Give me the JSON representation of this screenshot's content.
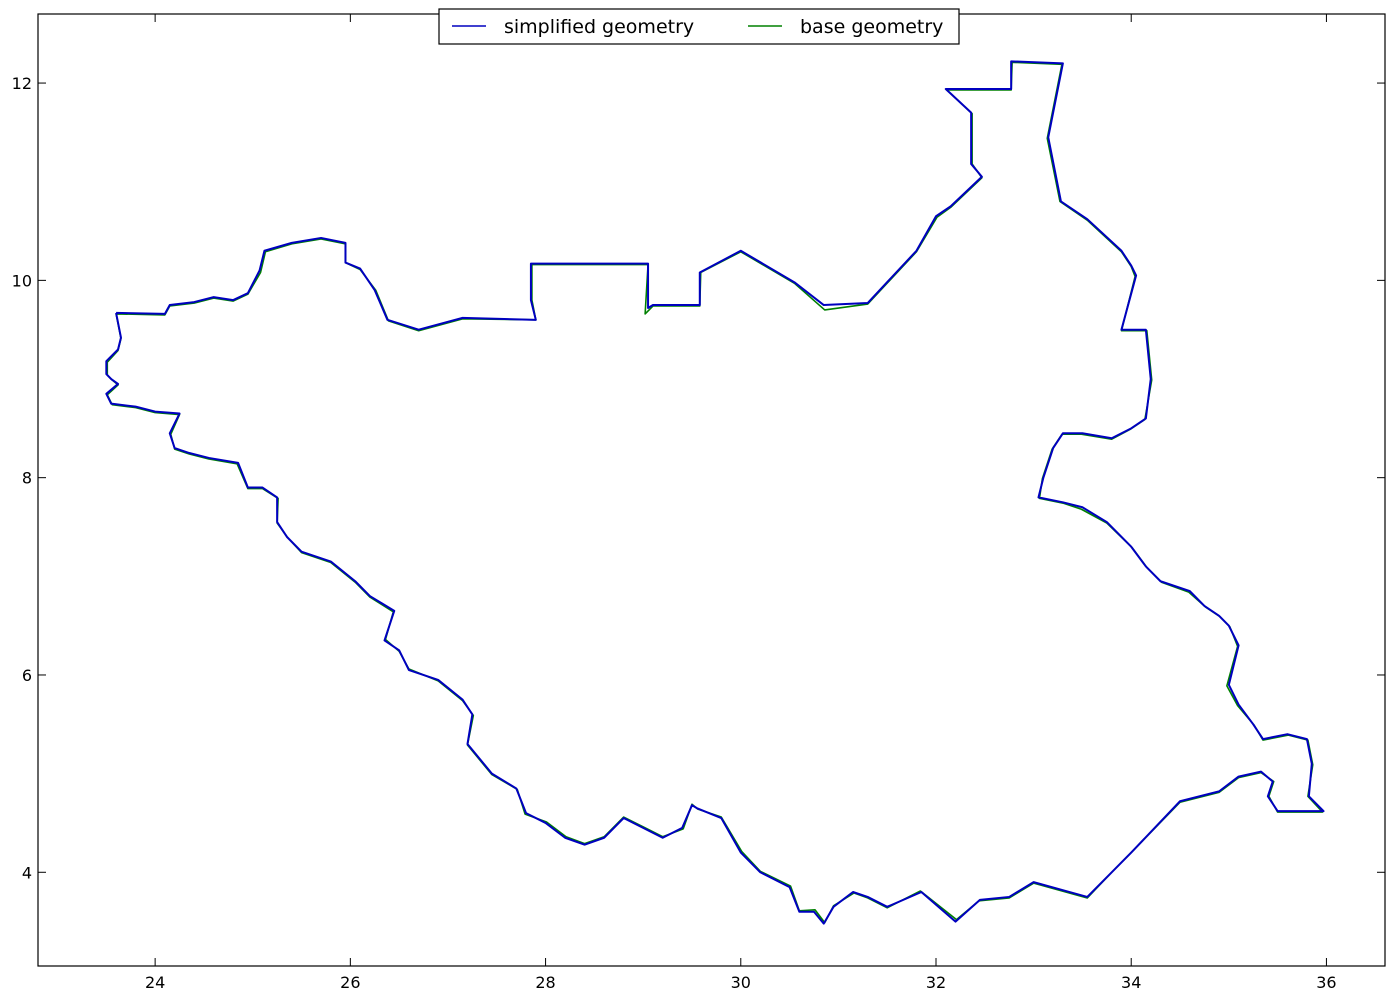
{
  "chart_data": {
    "type": "line",
    "xlim": [
      22.8,
      36.6
    ],
    "ylim": [
      3.05,
      12.7
    ],
    "xticks": [
      24,
      26,
      28,
      30,
      32,
      34,
      36
    ],
    "yticks": [
      4,
      6,
      8,
      10,
      12
    ],
    "grid": false,
    "legend": {
      "position": "top-center",
      "columns": 2
    },
    "series": [
      {
        "name": "simplified geometry",
        "color": "#0000bf",
        "points": [
          [
            23.6,
            9.67
          ],
          [
            24.1,
            9.66
          ],
          [
            24.15,
            9.75
          ],
          [
            24.4,
            9.78
          ],
          [
            24.6,
            9.83
          ],
          [
            24.8,
            9.8
          ],
          [
            24.95,
            9.87
          ],
          [
            25.07,
            10.1
          ],
          [
            25.12,
            10.3
          ],
          [
            25.4,
            10.38
          ],
          [
            25.7,
            10.43
          ],
          [
            25.95,
            10.38
          ],
          [
            25.95,
            10.18
          ],
          [
            26.1,
            10.12
          ],
          [
            26.25,
            9.9
          ],
          [
            26.38,
            9.6
          ],
          [
            26.7,
            9.5
          ],
          [
            27.15,
            9.62
          ],
          [
            27.9,
            9.6
          ],
          [
            27.85,
            9.8
          ],
          [
            27.85,
            10.17
          ],
          [
            29.05,
            10.17
          ],
          [
            29.05,
            9.72
          ],
          [
            29.1,
            9.75
          ],
          [
            29.58,
            9.75
          ],
          [
            29.58,
            10.08
          ],
          [
            30.0,
            10.3
          ],
          [
            30.55,
            9.98
          ],
          [
            30.85,
            9.75
          ],
          [
            31.3,
            9.77
          ],
          [
            31.8,
            10.3
          ],
          [
            32.0,
            10.65
          ],
          [
            32.15,
            10.75
          ],
          [
            32.47,
            11.05
          ],
          [
            32.36,
            11.18
          ],
          [
            32.36,
            11.7
          ],
          [
            32.1,
            11.94
          ],
          [
            32.77,
            11.94
          ],
          [
            32.77,
            12.22
          ],
          [
            33.3,
            12.2
          ],
          [
            33.15,
            11.45
          ],
          [
            33.28,
            10.8
          ],
          [
            33.55,
            10.62
          ],
          [
            33.9,
            10.3
          ],
          [
            34.0,
            10.15
          ],
          [
            34.05,
            10.05
          ],
          [
            33.9,
            9.5
          ],
          [
            34.15,
            9.5
          ],
          [
            34.2,
            9.0
          ],
          [
            34.15,
            8.6
          ],
          [
            34.0,
            8.5
          ],
          [
            33.8,
            8.4
          ],
          [
            33.5,
            8.45
          ],
          [
            33.3,
            8.45
          ],
          [
            33.2,
            8.3
          ],
          [
            33.1,
            8.0
          ],
          [
            33.05,
            7.8
          ],
          [
            33.3,
            7.75
          ],
          [
            33.5,
            7.7
          ],
          [
            33.75,
            7.55
          ],
          [
            34.0,
            7.3
          ],
          [
            34.15,
            7.1
          ],
          [
            34.3,
            6.95
          ],
          [
            34.6,
            6.85
          ],
          [
            34.75,
            6.7
          ],
          [
            34.9,
            6.6
          ],
          [
            35.0,
            6.5
          ],
          [
            35.1,
            6.3
          ],
          [
            35.0,
            5.9
          ],
          [
            35.1,
            5.7
          ],
          [
            35.25,
            5.5
          ],
          [
            35.35,
            5.35
          ],
          [
            35.6,
            5.4
          ],
          [
            35.8,
            5.35
          ],
          [
            35.85,
            5.1
          ],
          [
            35.82,
            4.77
          ],
          [
            35.97,
            4.62
          ],
          [
            35.6,
            4.62
          ],
          [
            35.5,
            4.62
          ],
          [
            35.4,
            4.77
          ],
          [
            35.45,
            4.92
          ],
          [
            35.33,
            5.02
          ],
          [
            35.1,
            4.97
          ],
          [
            34.9,
            4.82
          ],
          [
            34.5,
            4.72
          ],
          [
            34.0,
            4.2
          ],
          [
            33.8,
            4.0
          ],
          [
            33.55,
            3.75
          ],
          [
            33.0,
            3.9
          ],
          [
            32.75,
            3.75
          ],
          [
            32.45,
            3.72
          ],
          [
            32.2,
            3.5
          ],
          [
            31.85,
            3.8
          ],
          [
            31.5,
            3.65
          ],
          [
            31.3,
            3.75
          ],
          [
            31.15,
            3.8
          ],
          [
            30.95,
            3.65
          ],
          [
            30.85,
            3.48
          ],
          [
            30.75,
            3.6
          ],
          [
            30.6,
            3.6
          ],
          [
            30.5,
            3.85
          ],
          [
            30.2,
            4.0
          ],
          [
            30.0,
            4.2
          ],
          [
            29.8,
            4.55
          ],
          [
            29.55,
            4.65
          ],
          [
            29.5,
            4.68
          ],
          [
            29.4,
            4.45
          ],
          [
            29.2,
            4.35
          ],
          [
            29.0,
            4.45
          ],
          [
            28.8,
            4.55
          ],
          [
            28.6,
            4.35
          ],
          [
            28.4,
            4.28
          ],
          [
            28.2,
            4.35
          ],
          [
            28.0,
            4.5
          ],
          [
            27.8,
            4.6
          ],
          [
            27.7,
            4.85
          ],
          [
            27.45,
            5.0
          ],
          [
            27.2,
            5.3
          ],
          [
            27.25,
            5.6
          ],
          [
            27.15,
            5.75
          ],
          [
            26.9,
            5.95
          ],
          [
            26.6,
            6.05
          ],
          [
            26.5,
            6.25
          ],
          [
            26.35,
            6.35
          ],
          [
            26.45,
            6.65
          ],
          [
            26.2,
            6.8
          ],
          [
            26.05,
            6.95
          ],
          [
            25.8,
            7.15
          ],
          [
            25.5,
            7.25
          ],
          [
            25.35,
            7.4
          ],
          [
            25.25,
            7.55
          ],
          [
            25.25,
            7.8
          ],
          [
            25.1,
            7.9
          ],
          [
            24.95,
            7.9
          ],
          [
            24.85,
            8.15
          ],
          [
            24.55,
            8.2
          ],
          [
            24.35,
            8.25
          ],
          [
            24.2,
            8.3
          ],
          [
            24.15,
            8.45
          ],
          [
            24.25,
            8.65
          ],
          [
            24.0,
            8.67
          ],
          [
            23.8,
            8.72
          ],
          [
            23.55,
            8.75
          ],
          [
            23.5,
            8.85
          ],
          [
            23.62,
            8.95
          ],
          [
            23.55,
            9.0
          ],
          [
            23.5,
            9.05
          ],
          [
            23.5,
            9.18
          ],
          [
            23.62,
            9.3
          ],
          [
            23.65,
            9.42
          ],
          [
            23.6,
            9.67
          ]
        ]
      },
      {
        "name": "base geometry",
        "color": "#008000",
        "points": [
          [
            23.6,
            9.66
          ],
          [
            24.1,
            9.65
          ],
          [
            24.15,
            9.74
          ],
          [
            24.4,
            9.77
          ],
          [
            24.6,
            9.82
          ],
          [
            24.8,
            9.79
          ],
          [
            24.95,
            9.86
          ],
          [
            25.08,
            10.08
          ],
          [
            25.13,
            10.29
          ],
          [
            25.4,
            10.37
          ],
          [
            25.7,
            10.42
          ],
          [
            25.95,
            10.37
          ],
          [
            25.95,
            10.18
          ],
          [
            26.1,
            10.11
          ],
          [
            26.26,
            9.9
          ],
          [
            26.39,
            9.59
          ],
          [
            26.7,
            9.49
          ],
          [
            27.15,
            9.61
          ],
          [
            27.9,
            9.6
          ],
          [
            27.86,
            9.8
          ],
          [
            27.86,
            10.16
          ],
          [
            29.05,
            10.16
          ],
          [
            29.02,
            9.66
          ],
          [
            29.1,
            9.74
          ],
          [
            29.58,
            9.74
          ],
          [
            29.59,
            10.08
          ],
          [
            30.0,
            10.29
          ],
          [
            30.55,
            9.97
          ],
          [
            30.86,
            9.7
          ],
          [
            31.3,
            9.76
          ],
          [
            31.8,
            10.29
          ],
          [
            32.01,
            10.64
          ],
          [
            32.15,
            10.74
          ],
          [
            32.47,
            11.04
          ],
          [
            32.37,
            11.18
          ],
          [
            32.37,
            11.69
          ],
          [
            32.11,
            11.93
          ],
          [
            32.77,
            11.93
          ],
          [
            32.78,
            12.21
          ],
          [
            33.29,
            12.19
          ],
          [
            33.14,
            11.44
          ],
          [
            33.27,
            10.8
          ],
          [
            33.55,
            10.61
          ],
          [
            33.9,
            10.29
          ],
          [
            34.0,
            10.14
          ],
          [
            34.04,
            10.04
          ],
          [
            33.9,
            9.49
          ],
          [
            34.16,
            9.49
          ],
          [
            34.21,
            8.99
          ],
          [
            34.14,
            8.59
          ],
          [
            33.99,
            8.49
          ],
          [
            33.8,
            8.39
          ],
          [
            33.49,
            8.44
          ],
          [
            33.29,
            8.44
          ],
          [
            33.19,
            8.29
          ],
          [
            33.09,
            7.99
          ],
          [
            33.06,
            7.79
          ],
          [
            33.31,
            7.74
          ],
          [
            33.49,
            7.68
          ],
          [
            33.75,
            7.54
          ],
          [
            34.01,
            7.29
          ],
          [
            34.16,
            7.09
          ],
          [
            34.31,
            6.94
          ],
          [
            34.59,
            6.84
          ],
          [
            34.76,
            6.69
          ],
          [
            34.91,
            6.59
          ],
          [
            35.01,
            6.49
          ],
          [
            35.09,
            6.29
          ],
          [
            34.98,
            5.89
          ],
          [
            35.09,
            5.69
          ],
          [
            35.26,
            5.49
          ],
          [
            35.35,
            5.34
          ],
          [
            35.61,
            5.39
          ],
          [
            35.81,
            5.34
          ],
          [
            35.86,
            5.09
          ],
          [
            35.81,
            4.77
          ],
          [
            35.96,
            4.61
          ],
          [
            35.6,
            4.61
          ],
          [
            35.5,
            4.61
          ],
          [
            35.41,
            4.77
          ],
          [
            35.46,
            4.92
          ],
          [
            35.33,
            5.01
          ],
          [
            35.1,
            4.96
          ],
          [
            34.9,
            4.81
          ],
          [
            34.5,
            4.71
          ],
          [
            34.01,
            4.21
          ],
          [
            33.81,
            4.01
          ],
          [
            33.55,
            3.74
          ],
          [
            33.0,
            3.89
          ],
          [
            32.75,
            3.74
          ],
          [
            32.44,
            3.71
          ],
          [
            32.21,
            3.52
          ],
          [
            31.84,
            3.81
          ],
          [
            31.5,
            3.64
          ],
          [
            31.3,
            3.74
          ],
          [
            31.16,
            3.79
          ],
          [
            30.95,
            3.66
          ],
          [
            30.86,
            3.49
          ],
          [
            30.76,
            3.62
          ],
          [
            30.6,
            3.61
          ],
          [
            30.51,
            3.86
          ],
          [
            30.2,
            4.01
          ],
          [
            30.01,
            4.21
          ],
          [
            29.8,
            4.56
          ],
          [
            29.56,
            4.64
          ],
          [
            29.5,
            4.69
          ],
          [
            29.41,
            4.44
          ],
          [
            29.2,
            4.36
          ],
          [
            29.0,
            4.46
          ],
          [
            28.8,
            4.56
          ],
          [
            28.6,
            4.36
          ],
          [
            28.4,
            4.29
          ],
          [
            28.21,
            4.36
          ],
          [
            28.01,
            4.51
          ],
          [
            27.79,
            4.59
          ],
          [
            27.71,
            4.84
          ],
          [
            27.45,
            4.99
          ],
          [
            27.2,
            5.29
          ],
          [
            27.26,
            5.59
          ],
          [
            27.15,
            5.74
          ],
          [
            26.9,
            5.94
          ],
          [
            26.6,
            6.06
          ],
          [
            26.5,
            6.24
          ],
          [
            26.36,
            6.36
          ],
          [
            26.44,
            6.64
          ],
          [
            26.2,
            6.79
          ],
          [
            26.05,
            6.94
          ],
          [
            25.8,
            7.14
          ],
          [
            25.5,
            7.24
          ],
          [
            25.36,
            7.39
          ],
          [
            25.25,
            7.54
          ],
          [
            25.26,
            7.79
          ],
          [
            25.1,
            7.89
          ],
          [
            24.95,
            7.89
          ],
          [
            24.84,
            8.14
          ],
          [
            24.55,
            8.19
          ],
          [
            24.35,
            8.24
          ],
          [
            24.2,
            8.29
          ],
          [
            24.16,
            8.44
          ],
          [
            24.25,
            8.64
          ],
          [
            24.0,
            8.66
          ],
          [
            23.8,
            8.71
          ],
          [
            23.56,
            8.74
          ],
          [
            23.51,
            8.84
          ],
          [
            23.62,
            8.94
          ],
          [
            23.56,
            8.99
          ],
          [
            23.51,
            9.04
          ],
          [
            23.51,
            9.17
          ],
          [
            23.62,
            9.29
          ],
          [
            23.65,
            9.41
          ],
          [
            23.6,
            9.66
          ]
        ]
      }
    ]
  }
}
